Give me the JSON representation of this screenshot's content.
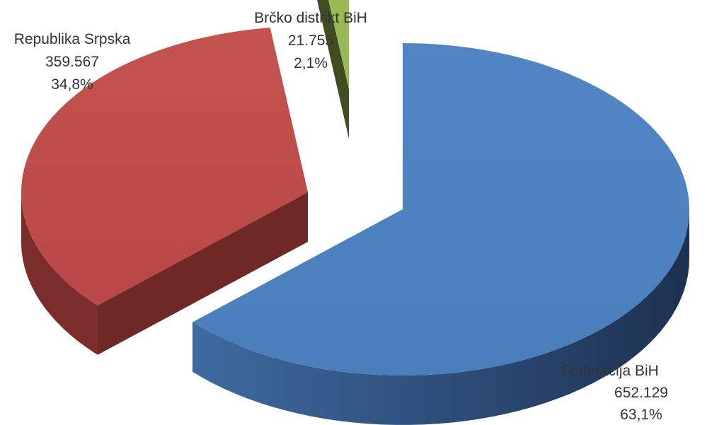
{
  "chart_data": {
    "type": "pie",
    "title": "",
    "categories": [
      "Federacija BiH",
      "Republika Srpska",
      "Brčko distrikt BiH"
    ],
    "values": [
      652129,
      359567,
      21755
    ],
    "value_labels": [
      "652.129",
      "359.567",
      "21.755"
    ],
    "percent_labels": [
      "63,1%",
      "34,8%",
      "2,1%"
    ],
    "colors": [
      "#4a7ebb",
      "#be4b48",
      "#98b954"
    ],
    "style": "3d-exploded",
    "legend": "none"
  }
}
